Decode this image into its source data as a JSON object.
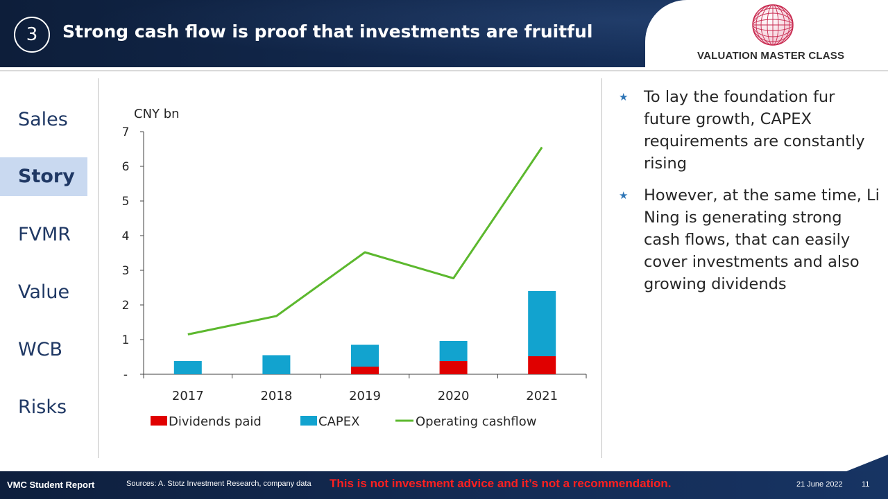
{
  "header": {
    "section_number": "3",
    "title": "Strong cash flow is proof that investments are fruitful",
    "logo_text": "VALUATION MASTER CLASS"
  },
  "nav": {
    "items": [
      {
        "label": "Sales",
        "active": false
      },
      {
        "label": "Story",
        "active": true
      },
      {
        "label": "FVMR",
        "active": false
      },
      {
        "label": "Value",
        "active": false
      },
      {
        "label": "WCB",
        "active": false
      },
      {
        "label": "Risks",
        "active": false
      }
    ]
  },
  "chart_data": {
    "type": "bar",
    "stacked": true,
    "unit_label": "CNY bn",
    "categories": [
      "2017",
      "2018",
      "2019",
      "2020",
      "2021"
    ],
    "ylim": [
      0,
      7
    ],
    "yticks": [
      "-",
      "1",
      "2",
      "3",
      "4",
      "5",
      "6",
      "7"
    ],
    "series": [
      {
        "name": "Dividends paid",
        "type": "bar",
        "color": "#e00000",
        "values": [
          0,
          0,
          0.22,
          0.38,
          0.52
        ]
      },
      {
        "name": "CAPEX",
        "type": "bar",
        "color": "#12a3cf",
        "values": [
          0.38,
          0.55,
          0.63,
          0.58,
          1.88
        ]
      },
      {
        "name": "Operating cashflow",
        "type": "line",
        "color": "#5cb82e",
        "values": [
          1.15,
          1.68,
          3.52,
          2.77,
          6.55
        ]
      }
    ],
    "legend_position": "bottom",
    "grid": false
  },
  "bullets": [
    "To lay the foundation fur future growth, CAPEX requirements are constantly rising",
    "However, at the same time, Li Ning is generating strong cash flows, that can easily cover investments and also growing dividends"
  ],
  "footer": {
    "report_label": "VMC Student Report",
    "sources": "Sources: A. Stotz Investment Research, company data",
    "disclaimer": "This is not investment advice and it’s not a recommendation.",
    "date": "21 June 2022",
    "page": "11"
  }
}
